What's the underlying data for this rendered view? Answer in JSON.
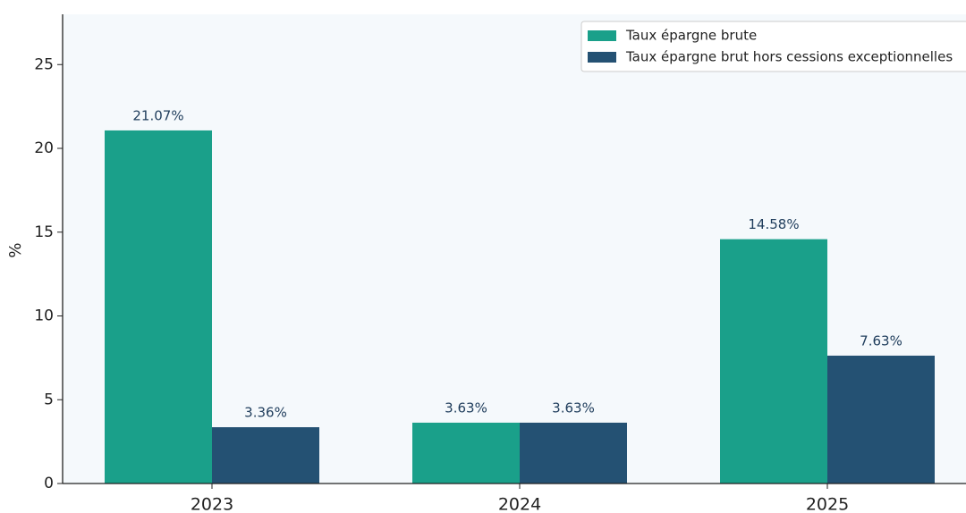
{
  "chart_data": {
    "type": "bar",
    "categories": [
      "2023",
      "2024",
      "2025"
    ],
    "ylabel": "%",
    "ylim": [
      0,
      28
    ],
    "yticks": [
      0,
      5,
      10,
      15,
      20,
      25
    ],
    "legend": "upper right",
    "series": [
      {
        "name": "Taux épargne brute",
        "color": "#1aa08a",
        "values": [
          21.07,
          3.63,
          14.58
        ],
        "value_labels": [
          "21.07%",
          "3.63%",
          "14.58%"
        ]
      },
      {
        "name": "Taux épargne brut hors cessions exceptionnelles",
        "color": "#245173",
        "values": [
          3.36,
          3.63,
          7.63
        ],
        "value_labels": [
          "3.36%",
          "3.63%",
          "7.63%"
        ]
      }
    ]
  }
}
